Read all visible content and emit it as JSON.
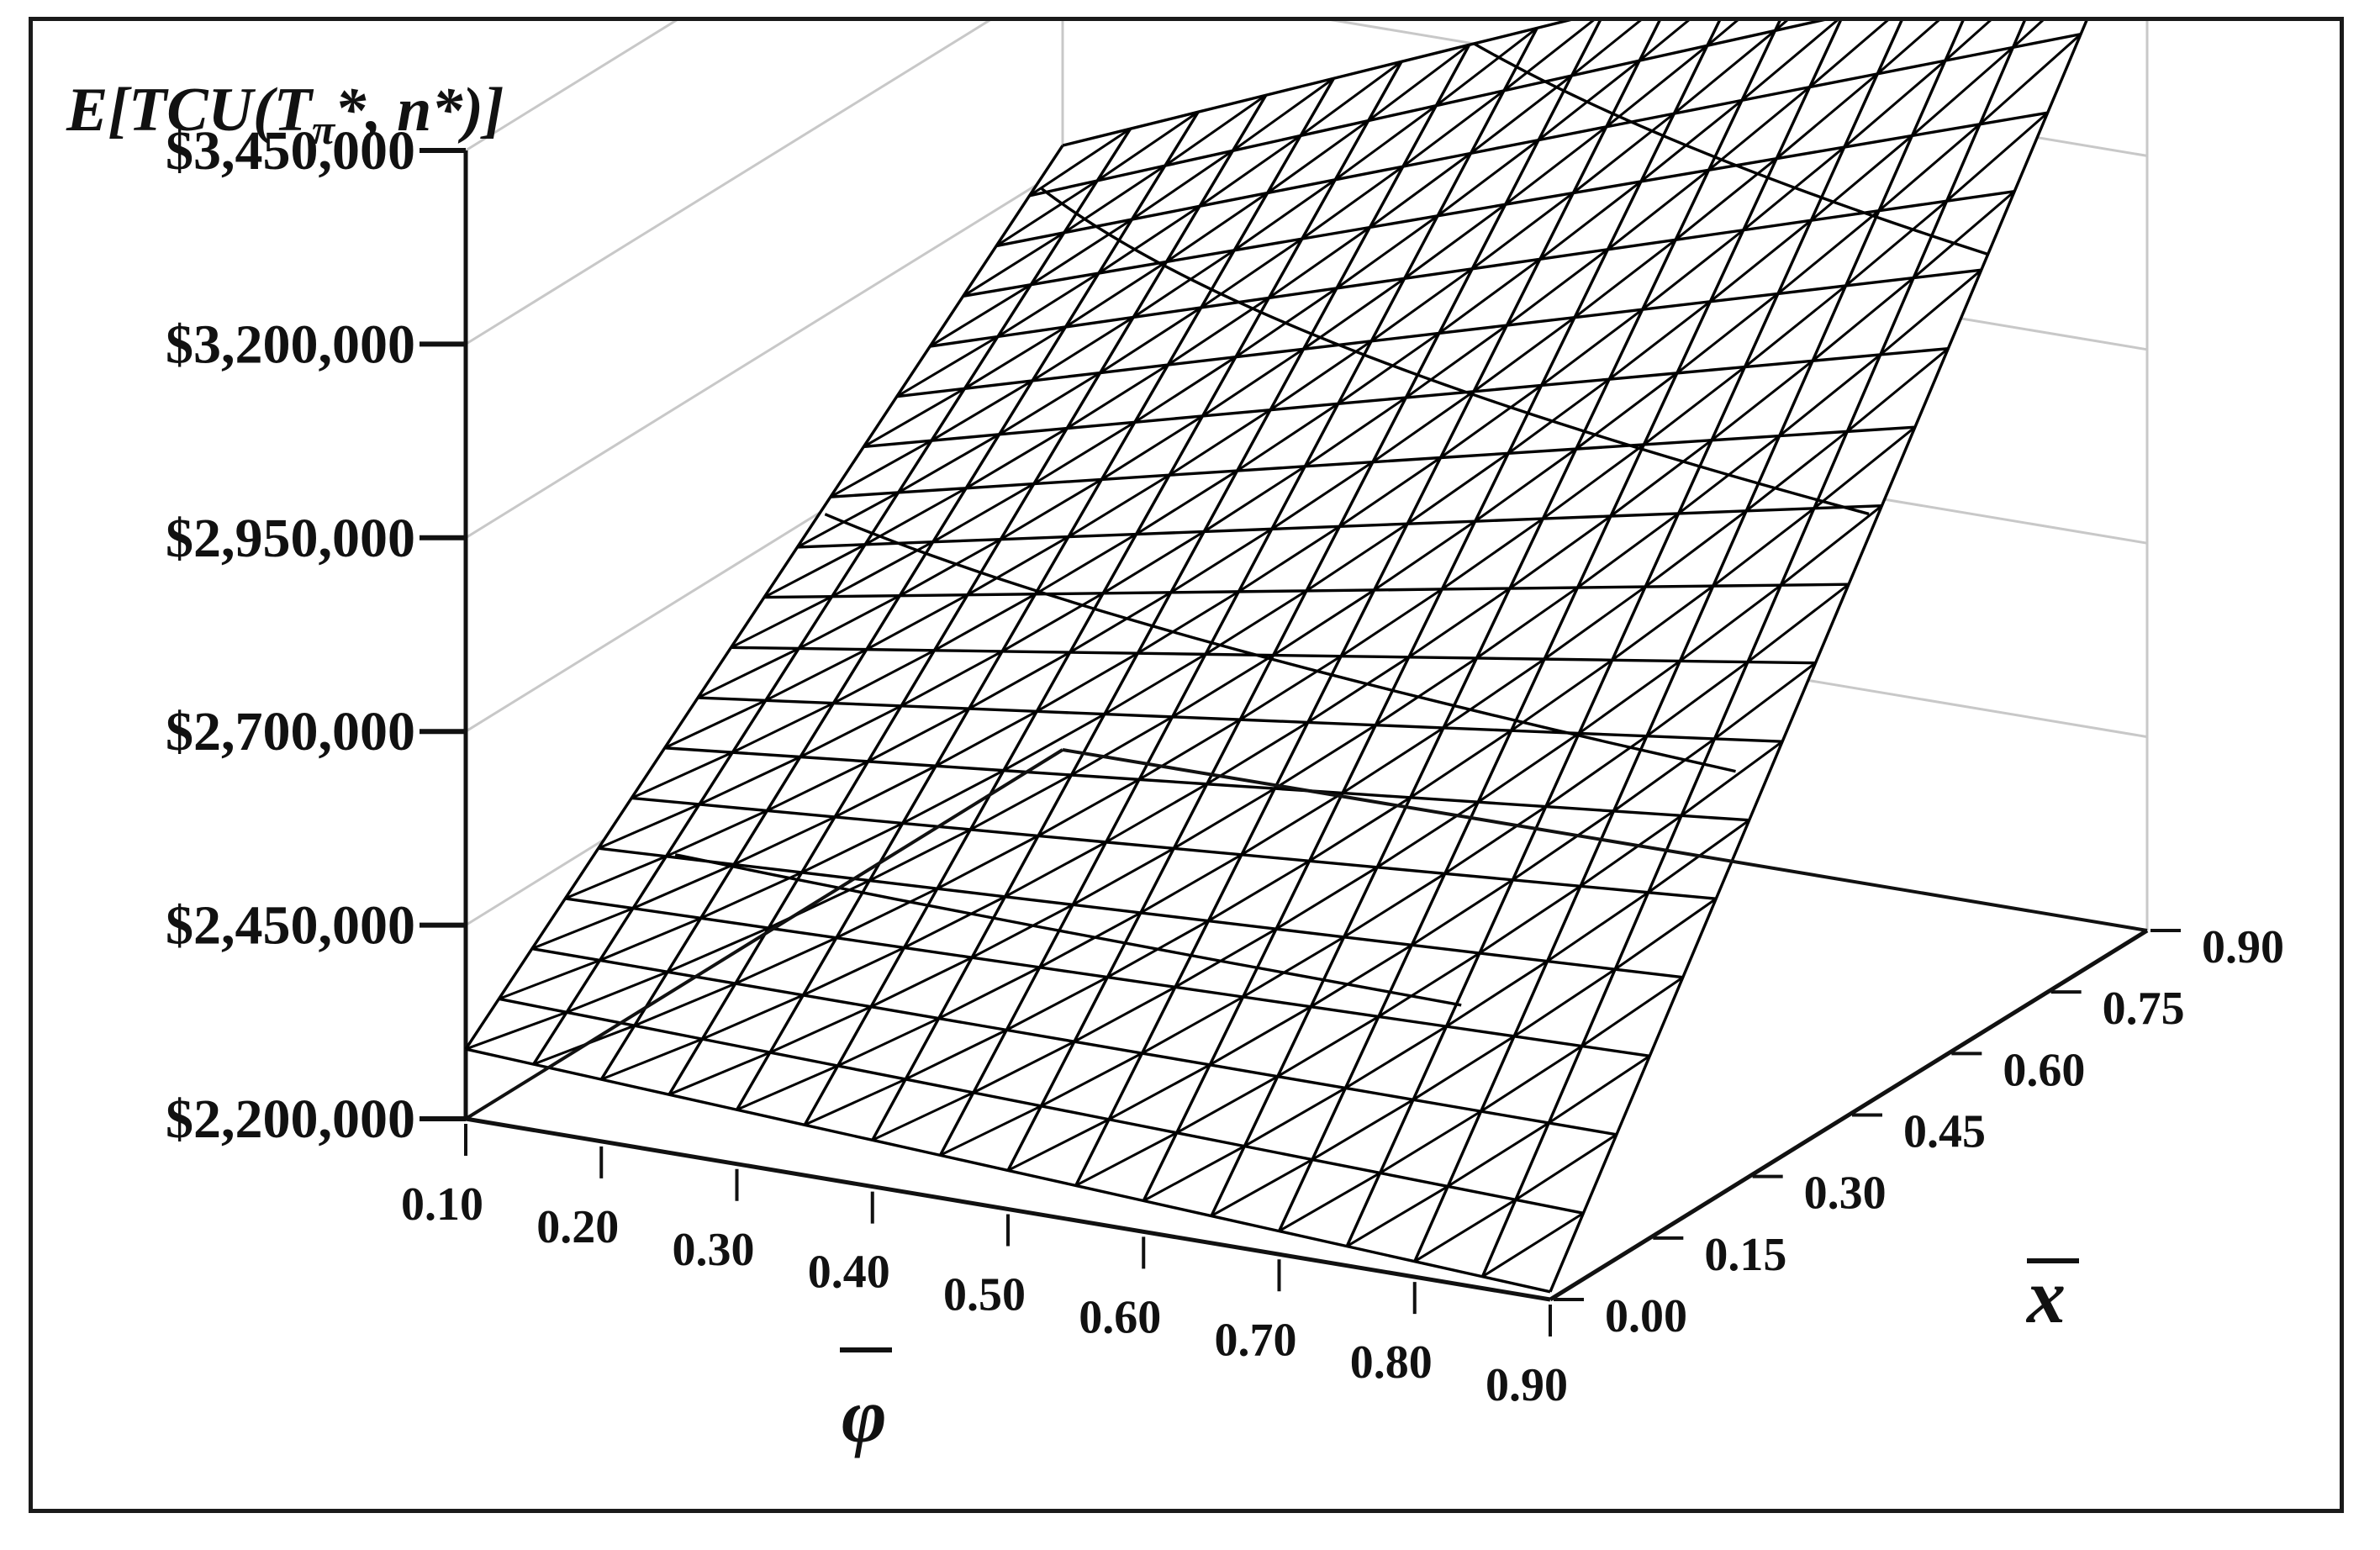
{
  "colors": {
    "frame": "#1a1a1a",
    "mesh": "#000000",
    "wall_grid": "#c8c8c8",
    "background": "#ffffff"
  },
  "chart_data": {
    "type": "surface",
    "title_parts": {
      "prefix": "E[TCU(T",
      "subscript": "π",
      "suffix": "*, n*)]"
    },
    "z_axis": {
      "ticks": [
        2200000,
        2450000,
        2700000,
        2950000,
        3200000,
        3450000
      ],
      "tick_labels": [
        "$2,200,000",
        "$2,450,000",
        "$2,700,000",
        "$2,950,000",
        "$3,200,000",
        "$3,450,000"
      ],
      "range": [
        2200000,
        3450000
      ]
    },
    "phi_axis": {
      "label": "φ",
      "overline": true,
      "ticks": [
        0.1,
        0.2,
        0.3,
        0.4,
        0.5,
        0.6,
        0.7,
        0.8,
        0.9
      ],
      "tick_labels": [
        "0.10",
        "0.20",
        "0.30",
        "0.40",
        "0.50",
        "0.60",
        "0.70",
        "0.80",
        "0.90"
      ],
      "range": [
        0.1,
        0.9
      ]
    },
    "x_axis": {
      "label": "x",
      "overline": true,
      "ticks": [
        0.0,
        0.15,
        0.3,
        0.45,
        0.6,
        0.75,
        0.9
      ],
      "tick_labels": [
        "0.00",
        "0.15",
        "0.30",
        "0.45",
        "0.60",
        "0.75",
        "0.90"
      ],
      "range": [
        0.0,
        0.9
      ]
    },
    "surface": {
      "grid_phi": [
        0.1,
        0.9,
        17
      ],
      "grid_x": [
        0.0,
        0.9,
        19
      ],
      "corners": [
        {
          "phi": 0.1,
          "x": 0.0,
          "value": 2290000
        },
        {
          "phi": 0.9,
          "x": 0.0,
          "value": 2210000
        },
        {
          "phi": 0.1,
          "x": 0.9,
          "value": 2980000
        },
        {
          "phi": 0.9,
          "x": 0.9,
          "value": 3560000
        }
      ],
      "contours": [
        2450000,
        2700000,
        2950000,
        3200000
      ]
    },
    "grid": true,
    "legend": "none"
  }
}
